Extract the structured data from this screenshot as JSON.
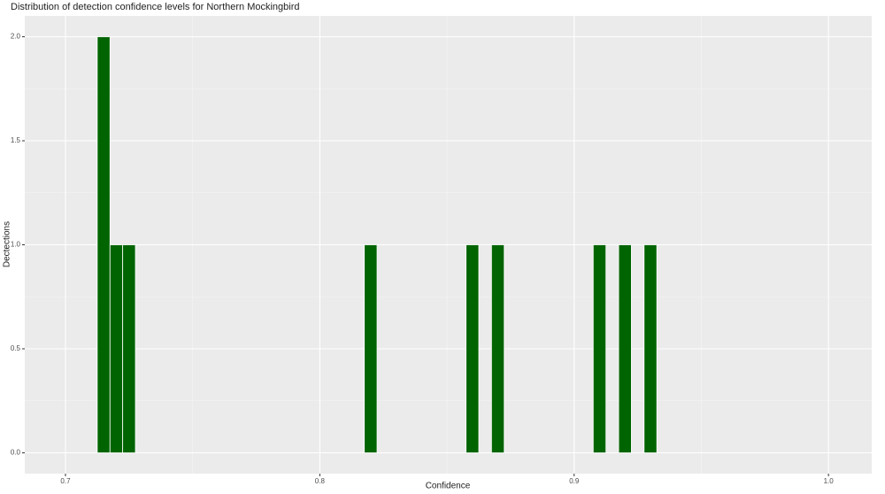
{
  "chart_data": {
    "type": "histogram",
    "title": "Distribution of detection confidence levels for Northern Mockingbird",
    "x_label": "Confidence",
    "y_label": "Dectections",
    "bins": [
      0.7125,
      0.7175,
      0.7225,
      0.7275,
      0.7325,
      0.7375,
      0.7425,
      0.7475,
      0.7525,
      0.7575,
      0.7625,
      0.7675,
      0.7725,
      0.7775,
      0.7825,
      0.7875,
      0.7925,
      0.7975,
      0.8025,
      0.8075,
      0.8125,
      0.8175,
      0.8225,
      0.8275,
      0.8325,
      0.8375,
      0.8425,
      0.8475,
      0.8525,
      0.8575,
      0.8625,
      0.8675,
      0.8725,
      0.8775,
      0.8825,
      0.8875,
      0.8925,
      0.8975,
      0.9025,
      0.9075,
      0.9125,
      0.9175,
      0.9225,
      0.9275,
      0.9325
    ],
    "values": [
      2,
      1,
      1,
      0,
      0,
      0,
      0,
      0,
      0,
      0,
      0,
      0,
      0,
      0,
      0,
      0,
      0,
      0,
      0,
      0,
      0,
      1,
      0,
      0,
      0,
      0,
      0,
      0,
      0,
      1,
      0,
      1,
      0,
      0,
      0,
      0,
      0,
      0,
      0,
      1,
      0,
      1,
      0,
      1
    ],
    "color": "#006400",
    "xlim": [
      0.684,
      1.017
    ],
    "xticks": [
      0.7,
      0.8,
      0.9,
      {
        "value": 1.0,
        "label": "1.0"
      }
    ],
    "ylim": [
      -0.1,
      2.1
    ],
    "yticks": [
      {
        "value": 0,
        "label": "0.0"
      },
      0.5,
      {
        "value": 1,
        "label": "1.0"
      },
      1.5,
      {
        "value": 2,
        "label": "2.0"
      }
    ],
    "grid": true
  }
}
